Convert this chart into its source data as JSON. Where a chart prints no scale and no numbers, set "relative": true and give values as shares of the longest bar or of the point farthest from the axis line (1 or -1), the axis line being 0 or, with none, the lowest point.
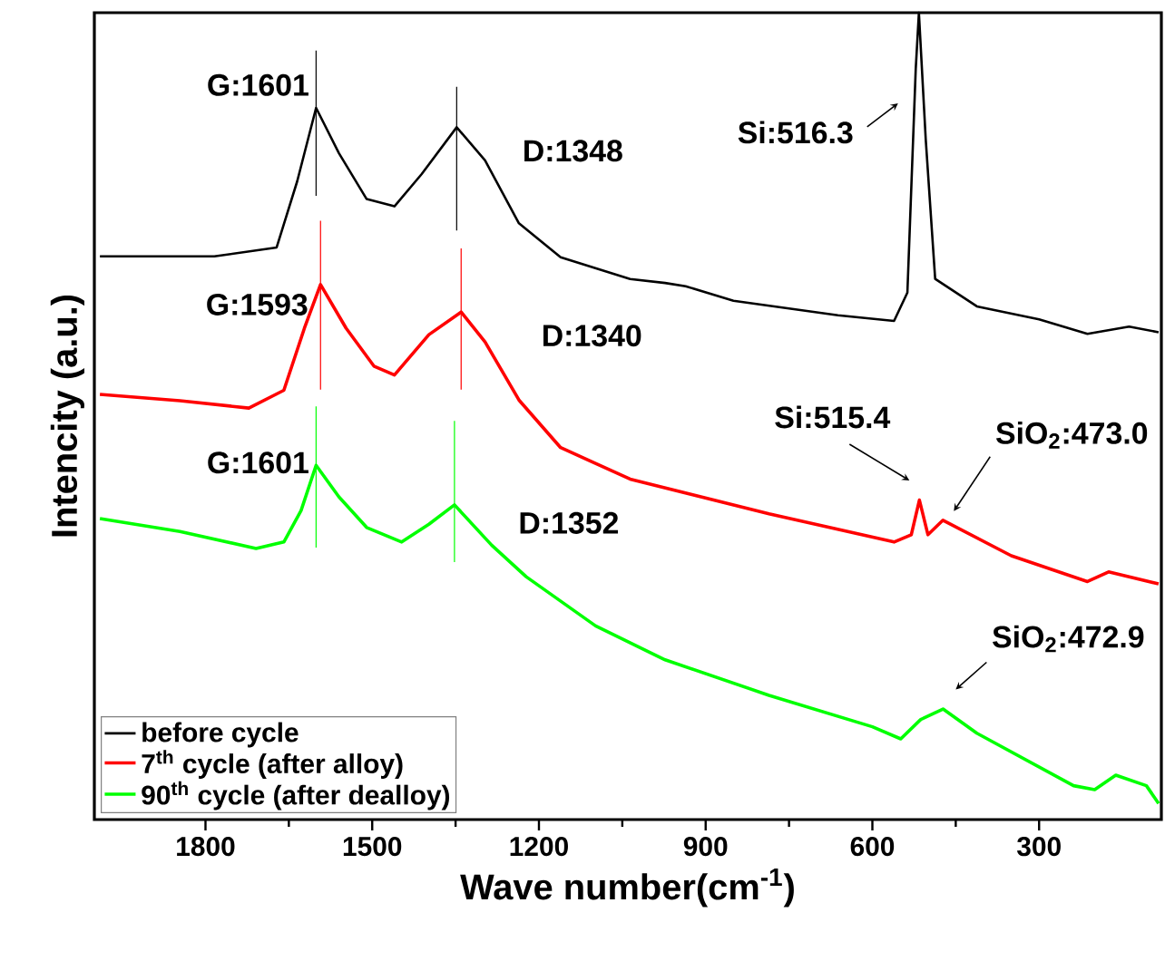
{
  "chart_data": {
    "type": "line",
    "relative": true,
    "xlabel": "Wave number(cm$^{-1}$)",
    "ylabel": "Intencity (a.u.)",
    "xlim": [
      2000,
      80
    ],
    "xticks": [
      1800,
      1500,
      1200,
      900,
      600,
      300
    ],
    "legend": "bottom left",
    "marker": "none",
    "line_style": "solid",
    "series": [
      {
        "name": "before cycle",
        "color": "#000000",
        "x": [
          1990,
          1784,
          1672,
          1635,
          1601,
          1560,
          1510,
          1460,
          1411,
          1348,
          1297,
          1236,
          1161,
          1036,
          973,
          936,
          850,
          662,
          561,
          537,
          522,
          516.3,
          504,
          487,
          412,
          300,
          213,
          138,
          85
        ],
        "values": [
          0.698,
          0.698,
          0.709,
          0.791,
          0.882,
          0.826,
          0.769,
          0.76,
          0.8,
          0.858,
          0.817,
          0.739,
          0.697,
          0.67,
          0.665,
          0.661,
          0.643,
          0.625,
          0.618,
          0.653,
          0.93,
          1.0,
          0.843,
          0.67,
          0.636,
          0.62,
          0.602,
          0.611,
          0.604
        ]
      },
      {
        "name": "7$^{th}$ cycle (after alloy)",
        "color": "#ff0000",
        "x": [
          1990,
          1846,
          1722,
          1659,
          1622,
          1593,
          1547,
          1497,
          1460,
          1398,
          1340,
          1297,
          1236,
          1161,
          1036,
          786,
          561,
          530,
          515.4,
          500,
          473,
          350,
          213,
          175,
          85
        ],
        "values": [
          0.527,
          0.519,
          0.51,
          0.532,
          0.609,
          0.663,
          0.609,
          0.562,
          0.551,
          0.601,
          0.629,
          0.592,
          0.52,
          0.461,
          0.422,
          0.379,
          0.344,
          0.353,
          0.396,
          0.353,
          0.371,
          0.327,
          0.295,
          0.307,
          0.292
        ]
      },
      {
        "name": "90$^{th}$ cycle (after dealloy)",
        "color": "#00ff00",
        "x": [
          1990,
          1846,
          1709,
          1659,
          1628,
          1601,
          1560,
          1510,
          1447,
          1398,
          1352,
          1285,
          1223,
          1098,
          973,
          786,
          600,
          549,
          513,
          472.9,
          412,
          238,
          200,
          162,
          107,
          85
        ],
        "values": [
          0.373,
          0.357,
          0.336,
          0.344,
          0.383,
          0.439,
          0.4,
          0.362,
          0.344,
          0.366,
          0.39,
          0.34,
          0.301,
          0.24,
          0.198,
          0.154,
          0.115,
          0.1,
          0.124,
          0.137,
          0.107,
          0.042,
          0.037,
          0.055,
          0.042,
          0.02
        ]
      },
      {
        "color": "#000000",
        "x": [
          1601,
          1601
        ],
        "values": [
          0.953,
          0.773
        ]
      },
      {
        "color": "#000000",
        "x": [
          1348,
          1348
        ],
        "values": [
          0.908,
          0.73
        ]
      },
      {
        "color": "#ff0000",
        "x": [
          1593,
          1593
        ],
        "values": [
          0.742,
          0.533
        ]
      },
      {
        "color": "#ff0000",
        "x": [
          1340,
          1340
        ],
        "values": [
          0.708,
          0.533
        ]
      },
      {
        "color": "#00ff00",
        "x": [
          1601,
          1601
        ],
        "values": [
          0.512,
          0.337
        ]
      },
      {
        "color": "#00ff00",
        "x": [
          1352,
          1352
        ],
        "values": [
          0.494,
          0.319
        ]
      }
    ],
    "annotations": [
      {
        "text": "G:1601",
        "x": 1601,
        "y": 0.882
      },
      {
        "text": "D:1348",
        "x": 1348,
        "y": 0.858
      },
      {
        "text": "G:1593",
        "x": 1593,
        "y": 0.663
      },
      {
        "text": "D:1340",
        "x": 1340,
        "y": 0.629
      },
      {
        "text": "G:1601",
        "x": 1601,
        "y": 0.439
      },
      {
        "text": "D:1352",
        "x": 1352,
        "y": 0.39
      },
      {
        "text": "Si:516.3",
        "x": 516.3,
        "y": 0.89
      },
      {
        "text": "Si:515.4",
        "x": 515.4,
        "y": 0.409
      },
      {
        "text": "SiO$_{2}$:473.0",
        "x": 473,
        "y": 0.371
      },
      {
        "text": "SiO$_{2}$:472.9",
        "x": 472.9,
        "y": 0.15
      }
    ]
  }
}
